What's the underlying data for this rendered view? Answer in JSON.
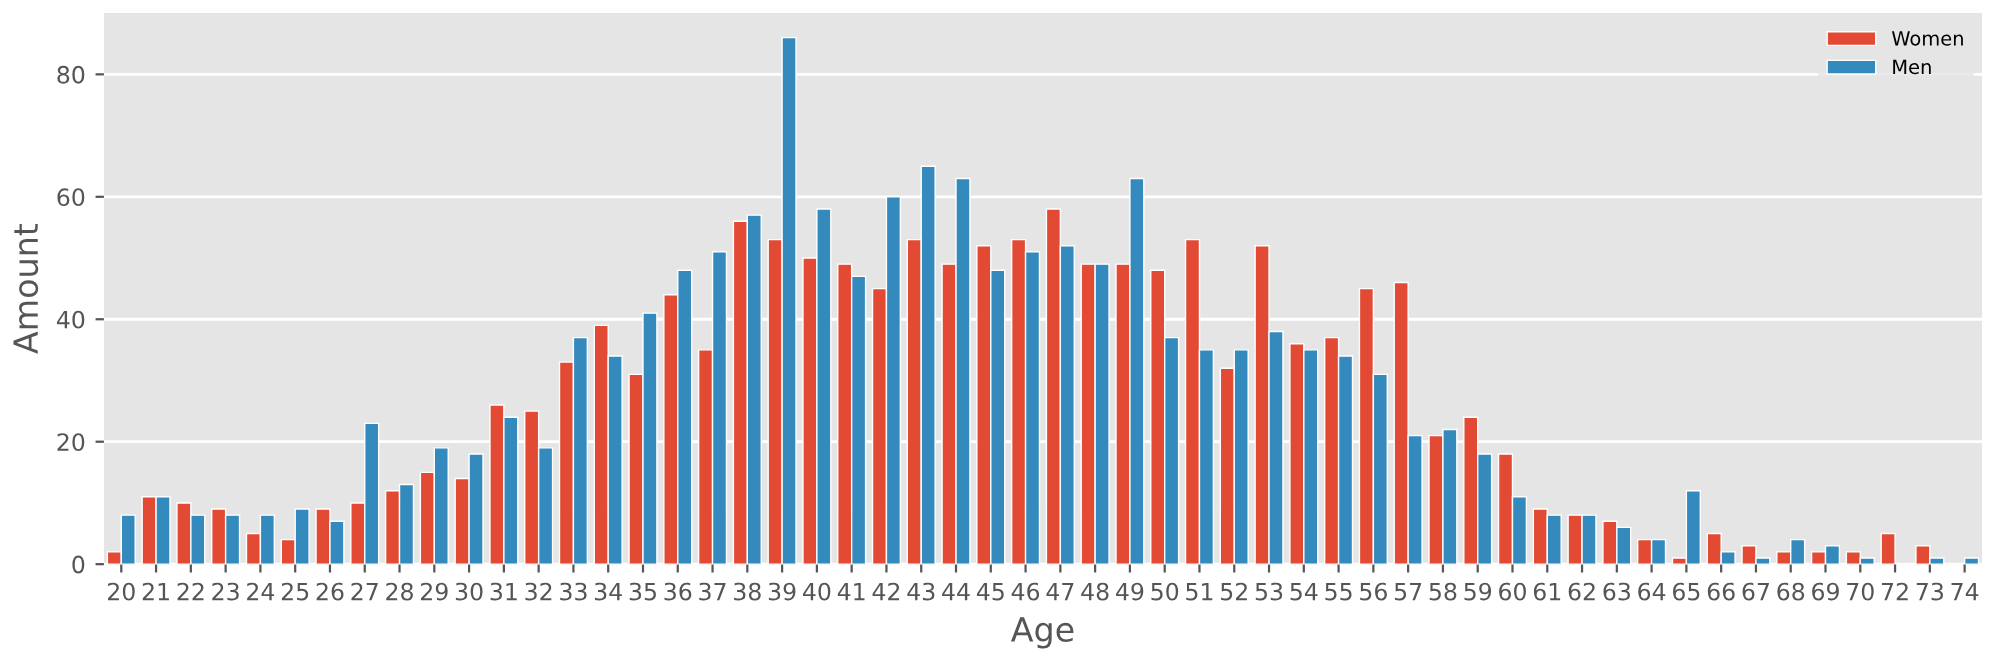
{
  "chart_data": {
    "type": "bar",
    "xlabel": "Age",
    "ylabel": "Amount",
    "categories": [
      "20",
      "21",
      "22",
      "23",
      "24",
      "25",
      "26",
      "27",
      "28",
      "29",
      "30",
      "31",
      "32",
      "33",
      "34",
      "35",
      "36",
      "37",
      "38",
      "39",
      "40",
      "41",
      "42",
      "43",
      "44",
      "45",
      "46",
      "47",
      "48",
      "49",
      "50",
      "51",
      "52",
      "53",
      "54",
      "55",
      "56",
      "57",
      "58",
      "59",
      "60",
      "61",
      "62",
      "63",
      "64",
      "65",
      "66",
      "67",
      "68",
      "69",
      "70",
      "72",
      "73",
      "74"
    ],
    "series": [
      {
        "name": "Women",
        "color": "#e24a33",
        "values": [
          2,
          11,
          10,
          9,
          5,
          4,
          9,
          10,
          12,
          15,
          14,
          26,
          25,
          33,
          39,
          31,
          44,
          35,
          56,
          53,
          50,
          49,
          45,
          53,
          49,
          52,
          53,
          58,
          49,
          49,
          48,
          53,
          32,
          52,
          36,
          37,
          45,
          46,
          21,
          24,
          18,
          9,
          8,
          7,
          4,
          1,
          5,
          3,
          2,
          2,
          2,
          5,
          3,
          null
        ]
      },
      {
        "name": "Men",
        "color": "#348abd",
        "values": [
          8,
          11,
          8,
          8,
          8,
          9,
          7,
          23,
          13,
          19,
          18,
          24,
          19,
          37,
          34,
          41,
          48,
          51,
          57,
          86,
          58,
          47,
          60,
          65,
          63,
          48,
          51,
          52,
          49,
          63,
          37,
          35,
          35,
          38,
          35,
          34,
          31,
          21,
          22,
          18,
          11,
          8,
          8,
          6,
          4,
          12,
          2,
          1,
          4,
          3,
          1,
          null,
          1,
          1
        ]
      }
    ],
    "ylim": [
      0,
      90
    ],
    "yticks": [
      0,
      20,
      40,
      60,
      80
    ],
    "grid": "y",
    "legend": "top right"
  }
}
